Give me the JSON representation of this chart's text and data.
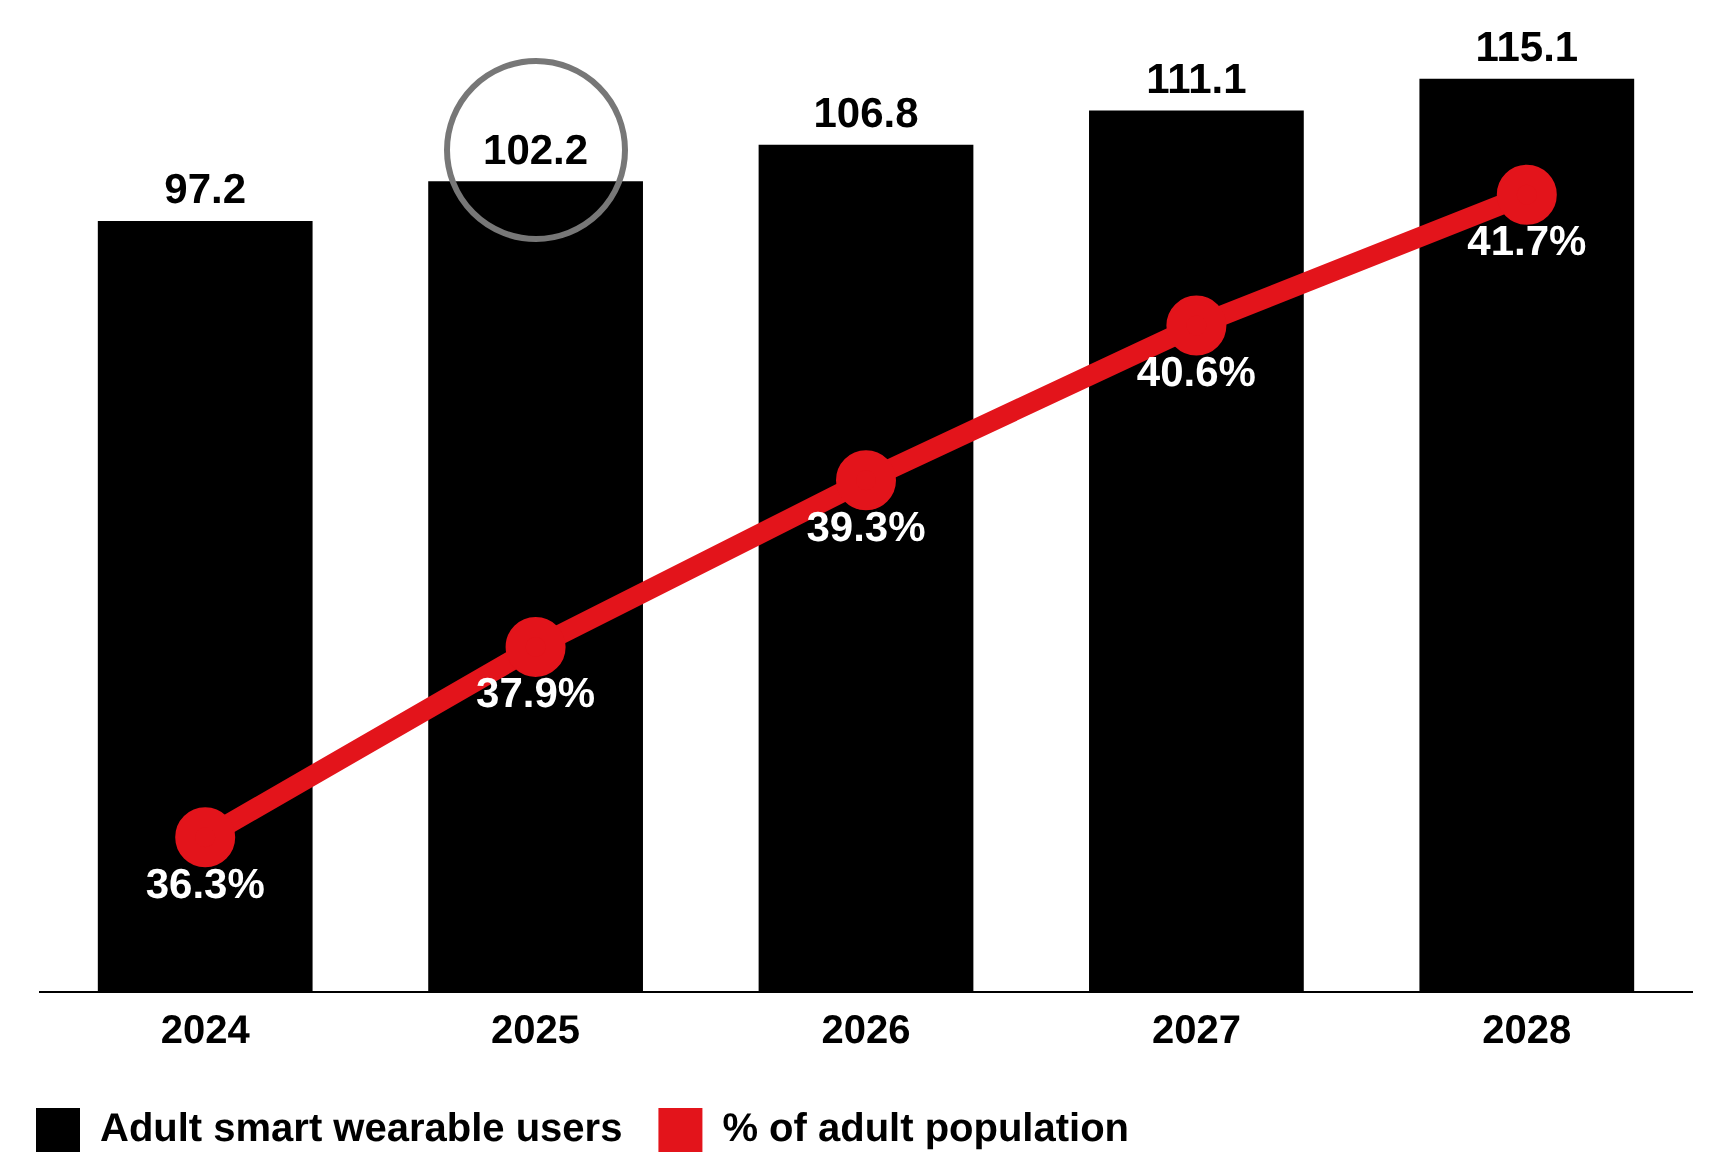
{
  "chart_data": {
    "type": "bar",
    "categories": [
      "2024",
      "2025",
      "2026",
      "2027",
      "2028"
    ],
    "series": [
      {
        "name": "Adult smart wearable users",
        "color": "#000000",
        "values": [
          97.2,
          102.2,
          106.8,
          111.1,
          115.1
        ]
      },
      {
        "name": "% of adult population",
        "type": "line",
        "axis": "y2",
        "color": "#e3141b",
        "values": [
          36.3,
          37.9,
          39.3,
          40.6,
          41.7
        ],
        "value_labels": [
          "36.3%",
          "37.9%",
          "39.3%",
          "40.6%",
          "41.7%"
        ]
      }
    ],
    "tick_labels": "x",
    "data_labels": true,
    "legend": "bottom left",
    "marker": "circle"
  }
}
